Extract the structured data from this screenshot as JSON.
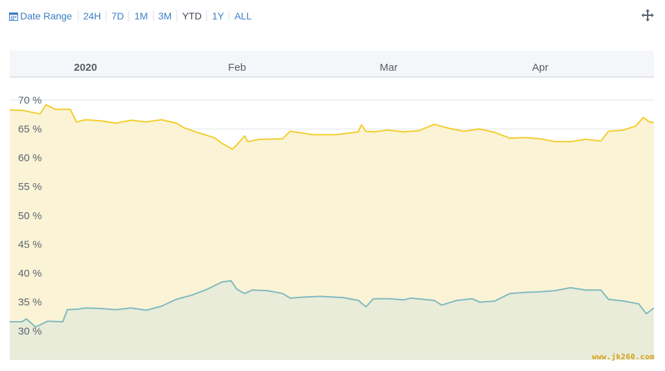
{
  "toolbar": {
    "date_range_label": "Date Range",
    "buttons": [
      "24H",
      "7D",
      "1M",
      "3M",
      "YTD",
      "1Y",
      "ALL"
    ],
    "active": "YTD",
    "link_color": "#3b7ec4"
  },
  "icons": {
    "calendar": "calendar-icon",
    "move": "move-arrows-icon"
  },
  "watermark": "www.jk260.com",
  "chart_data": {
    "type": "area",
    "title": "",
    "x_labels": [
      {
        "x": 0.0,
        "label": "2020",
        "bold": true
      },
      {
        "x": 1.0,
        "label": "Feb"
      },
      {
        "x": 2.0,
        "label": "Mar"
      },
      {
        "x": 3.0,
        "label": "Apr"
      }
    ],
    "xlim": [
      -0.5,
      3.75
    ],
    "ylim": [
      25,
      74
    ],
    "y_ticks": [
      30,
      35,
      40,
      45,
      50,
      55,
      60,
      65,
      70
    ],
    "y_tick_suffix": " %",
    "grid": true,
    "series": [
      {
        "color": "#f2ce2d",
        "fill": "#fbf3d6",
        "points": [
          [
            -0.5,
            68.3
          ],
          [
            -0.41,
            68.2
          ],
          [
            -0.3,
            67.6
          ],
          [
            -0.26,
            69.2
          ],
          [
            -0.2,
            68.4
          ],
          [
            -0.1,
            68.4
          ],
          [
            -0.06,
            66.2
          ],
          [
            0.0,
            66.6
          ],
          [
            0.1,
            66.4
          ],
          [
            0.2,
            66.0
          ],
          [
            0.3,
            66.5
          ],
          [
            0.4,
            66.2
          ],
          [
            0.5,
            66.6
          ],
          [
            0.6,
            66.0
          ],
          [
            0.65,
            65.2
          ],
          [
            0.75,
            64.3
          ],
          [
            0.85,
            63.5
          ],
          [
            0.9,
            62.5
          ],
          [
            0.97,
            61.5
          ],
          [
            1.0,
            62.3
          ],
          [
            1.05,
            63.8
          ],
          [
            1.07,
            62.8
          ],
          [
            1.15,
            63.2
          ],
          [
            1.3,
            63.3
          ],
          [
            1.35,
            64.6
          ],
          [
            1.5,
            64.0
          ],
          [
            1.65,
            64.0
          ],
          [
            1.8,
            64.5
          ],
          [
            1.82,
            65.7
          ],
          [
            1.85,
            64.6
          ],
          [
            1.9,
            64.5
          ],
          [
            2.0,
            64.8
          ],
          [
            2.1,
            64.5
          ],
          [
            2.2,
            64.7
          ],
          [
            2.3,
            65.8
          ],
          [
            2.4,
            65.1
          ],
          [
            2.5,
            64.6
          ],
          [
            2.6,
            65.0
          ],
          [
            2.7,
            64.4
          ],
          [
            2.8,
            63.4
          ],
          [
            2.9,
            63.5
          ],
          [
            3.0,
            63.3
          ],
          [
            3.1,
            62.8
          ],
          [
            3.2,
            62.8
          ],
          [
            3.3,
            63.2
          ],
          [
            3.4,
            62.9
          ],
          [
            3.45,
            64.6
          ],
          [
            3.55,
            64.8
          ],
          [
            3.63,
            65.5
          ],
          [
            3.68,
            67.0
          ],
          [
            3.72,
            66.2
          ],
          [
            3.75,
            66.1
          ]
        ]
      },
      {
        "color": "#7fbac0",
        "fill": "#e9ecd9",
        "points": [
          [
            -0.5,
            31.6
          ],
          [
            -0.42,
            31.6
          ],
          [
            -0.39,
            32.1
          ],
          [
            -0.33,
            30.7
          ],
          [
            -0.25,
            31.7
          ],
          [
            -0.15,
            31.6
          ],
          [
            -0.12,
            33.7
          ],
          [
            -0.05,
            33.8
          ],
          [
            0.0,
            34.0
          ],
          [
            0.1,
            33.9
          ],
          [
            0.2,
            33.7
          ],
          [
            0.3,
            34.0
          ],
          [
            0.4,
            33.6
          ],
          [
            0.5,
            34.3
          ],
          [
            0.6,
            35.5
          ],
          [
            0.7,
            36.2
          ],
          [
            0.8,
            37.2
          ],
          [
            0.9,
            38.5
          ],
          [
            0.96,
            38.7
          ],
          [
            1.0,
            37.2
          ],
          [
            1.05,
            36.5
          ],
          [
            1.1,
            37.1
          ],
          [
            1.2,
            37.0
          ],
          [
            1.3,
            36.5
          ],
          [
            1.35,
            35.7
          ],
          [
            1.45,
            35.9
          ],
          [
            1.55,
            36.0
          ],
          [
            1.7,
            35.8
          ],
          [
            1.8,
            35.3
          ],
          [
            1.85,
            34.2
          ],
          [
            1.9,
            35.6
          ],
          [
            2.0,
            35.6
          ],
          [
            2.1,
            35.4
          ],
          [
            2.15,
            35.7
          ],
          [
            2.3,
            35.3
          ],
          [
            2.35,
            34.5
          ],
          [
            2.45,
            35.3
          ],
          [
            2.55,
            35.6
          ],
          [
            2.6,
            35.0
          ],
          [
            2.7,
            35.2
          ],
          [
            2.8,
            36.5
          ],
          [
            2.9,
            36.7
          ],
          [
            3.0,
            36.8
          ],
          [
            3.1,
            37.0
          ],
          [
            3.2,
            37.5
          ],
          [
            3.3,
            37.1
          ],
          [
            3.4,
            37.1
          ],
          [
            3.45,
            35.5
          ],
          [
            3.55,
            35.2
          ],
          [
            3.65,
            34.7
          ],
          [
            3.7,
            33.0
          ],
          [
            3.75,
            34.0
          ]
        ]
      }
    ],
    "plot_band_color": "#f4f6f9",
    "grid_color": "#e3e6ea"
  }
}
